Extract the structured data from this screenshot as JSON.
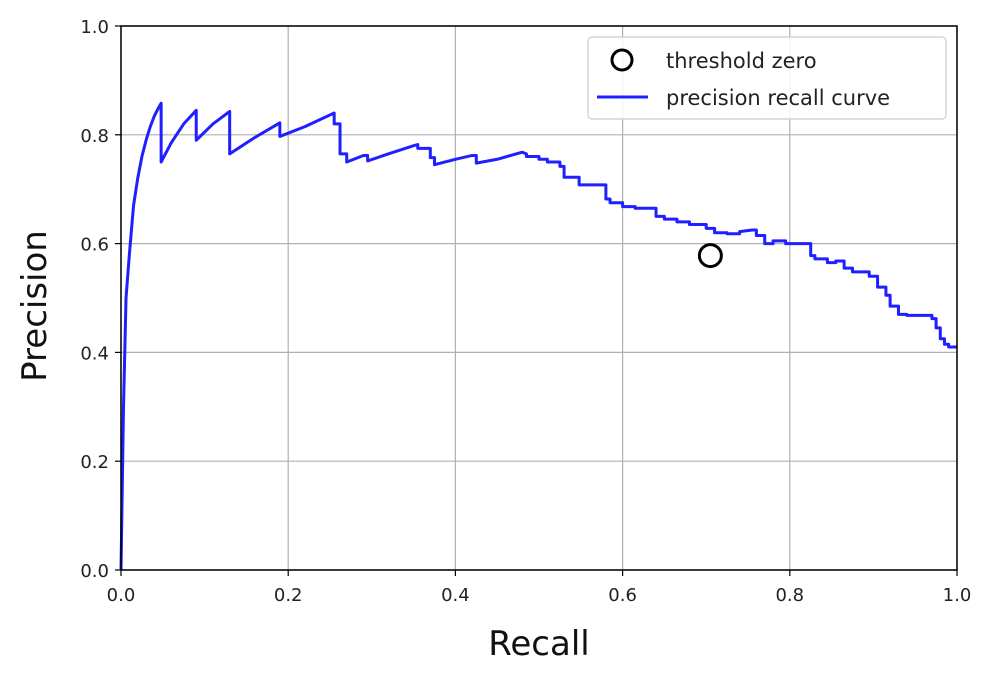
{
  "chart_data": {
    "type": "line",
    "xlabel": "Recall",
    "ylabel": "Precision",
    "xlim": [
      0.0,
      1.0
    ],
    "ylim": [
      0.0,
      1.0
    ],
    "x_ticks": [
      "0.0",
      "0.2",
      "0.4",
      "0.6",
      "0.8",
      "1.0"
    ],
    "y_ticks": [
      "0.0",
      "0.2",
      "0.4",
      "0.6",
      "0.8",
      "1.0"
    ],
    "grid": true,
    "legend_position": "top-right",
    "legend": [
      "threshold zero",
      "precision recall curve"
    ],
    "series": [
      {
        "name": "precision recall curve",
        "type": "line",
        "color": "#1f1fff",
        "points": [
          [
            0.0,
            0.0
          ],
          [
            0.003,
            0.3
          ],
          [
            0.006,
            0.5
          ],
          [
            0.01,
            0.58
          ],
          [
            0.015,
            0.67
          ],
          [
            0.02,
            0.72
          ],
          [
            0.025,
            0.76
          ],
          [
            0.03,
            0.79
          ],
          [
            0.035,
            0.815
          ],
          [
            0.04,
            0.835
          ],
          [
            0.045,
            0.85
          ],
          [
            0.048,
            0.858
          ],
          [
            0.048,
            0.75
          ],
          [
            0.06,
            0.785
          ],
          [
            0.075,
            0.82
          ],
          [
            0.09,
            0.845
          ],
          [
            0.09,
            0.79
          ],
          [
            0.11,
            0.82
          ],
          [
            0.13,
            0.843
          ],
          [
            0.13,
            0.765
          ],
          [
            0.16,
            0.795
          ],
          [
            0.19,
            0.822
          ],
          [
            0.19,
            0.797
          ],
          [
            0.22,
            0.815
          ],
          [
            0.255,
            0.84
          ],
          [
            0.255,
            0.82
          ],
          [
            0.262,
            0.82
          ],
          [
            0.262,
            0.765
          ],
          [
            0.27,
            0.765
          ],
          [
            0.27,
            0.75
          ],
          [
            0.29,
            0.762
          ],
          [
            0.295,
            0.762
          ],
          [
            0.295,
            0.752
          ],
          [
            0.32,
            0.765
          ],
          [
            0.35,
            0.78
          ],
          [
            0.355,
            0.782
          ],
          [
            0.355,
            0.775
          ],
          [
            0.37,
            0.775
          ],
          [
            0.37,
            0.758
          ],
          [
            0.375,
            0.758
          ],
          [
            0.375,
            0.745
          ],
          [
            0.4,
            0.755
          ],
          [
            0.42,
            0.762
          ],
          [
            0.425,
            0.762
          ],
          [
            0.425,
            0.748
          ],
          [
            0.45,
            0.755
          ],
          [
            0.48,
            0.768
          ],
          [
            0.485,
            0.765
          ],
          [
            0.485,
            0.76
          ],
          [
            0.5,
            0.76
          ],
          [
            0.5,
            0.755
          ],
          [
            0.51,
            0.755
          ],
          [
            0.51,
            0.75
          ],
          [
            0.525,
            0.75
          ],
          [
            0.525,
            0.742
          ],
          [
            0.53,
            0.742
          ],
          [
            0.53,
            0.722
          ],
          [
            0.548,
            0.722
          ],
          [
            0.548,
            0.708
          ],
          [
            0.58,
            0.708
          ],
          [
            0.58,
            0.682
          ],
          [
            0.585,
            0.682
          ],
          [
            0.585,
            0.675
          ],
          [
            0.6,
            0.675
          ],
          [
            0.6,
            0.668
          ],
          [
            0.615,
            0.668
          ],
          [
            0.615,
            0.665
          ],
          [
            0.64,
            0.665
          ],
          [
            0.64,
            0.65
          ],
          [
            0.65,
            0.65
          ],
          [
            0.65,
            0.645
          ],
          [
            0.665,
            0.645
          ],
          [
            0.665,
            0.64
          ],
          [
            0.68,
            0.64
          ],
          [
            0.68,
            0.635
          ],
          [
            0.7,
            0.635
          ],
          [
            0.7,
            0.628
          ],
          [
            0.71,
            0.628
          ],
          [
            0.71,
            0.62
          ],
          [
            0.725,
            0.62
          ],
          [
            0.725,
            0.618
          ],
          [
            0.74,
            0.618
          ],
          [
            0.74,
            0.622
          ],
          [
            0.755,
            0.625
          ],
          [
            0.76,
            0.625
          ],
          [
            0.76,
            0.615
          ],
          [
            0.77,
            0.615
          ],
          [
            0.77,
            0.6
          ],
          [
            0.78,
            0.6
          ],
          [
            0.78,
            0.605
          ],
          [
            0.795,
            0.605
          ],
          [
            0.795,
            0.6
          ],
          [
            0.825,
            0.6
          ],
          [
            0.825,
            0.578
          ],
          [
            0.83,
            0.578
          ],
          [
            0.83,
            0.572
          ],
          [
            0.845,
            0.572
          ],
          [
            0.845,
            0.565
          ],
          [
            0.855,
            0.565
          ],
          [
            0.855,
            0.568
          ],
          [
            0.865,
            0.568
          ],
          [
            0.865,
            0.555
          ],
          [
            0.875,
            0.555
          ],
          [
            0.875,
            0.548
          ],
          [
            0.895,
            0.548
          ],
          [
            0.895,
            0.54
          ],
          [
            0.905,
            0.54
          ],
          [
            0.905,
            0.52
          ],
          [
            0.915,
            0.52
          ],
          [
            0.915,
            0.505
          ],
          [
            0.92,
            0.505
          ],
          [
            0.92,
            0.485
          ],
          [
            0.93,
            0.485
          ],
          [
            0.93,
            0.47
          ],
          [
            0.94,
            0.47
          ],
          [
            0.94,
            0.468
          ],
          [
            0.97,
            0.468
          ],
          [
            0.97,
            0.462
          ],
          [
            0.975,
            0.462
          ],
          [
            0.975,
            0.445
          ],
          [
            0.98,
            0.445
          ],
          [
            0.98,
            0.425
          ],
          [
            0.985,
            0.425
          ],
          [
            0.985,
            0.415
          ],
          [
            0.99,
            0.415
          ],
          [
            0.99,
            0.41
          ],
          [
            1.0,
            0.41
          ]
        ]
      },
      {
        "name": "threshold zero",
        "type": "scatter",
        "marker": "open-circle",
        "color": "#000000",
        "points": [
          [
            0.705,
            0.578
          ]
        ]
      }
    ]
  }
}
